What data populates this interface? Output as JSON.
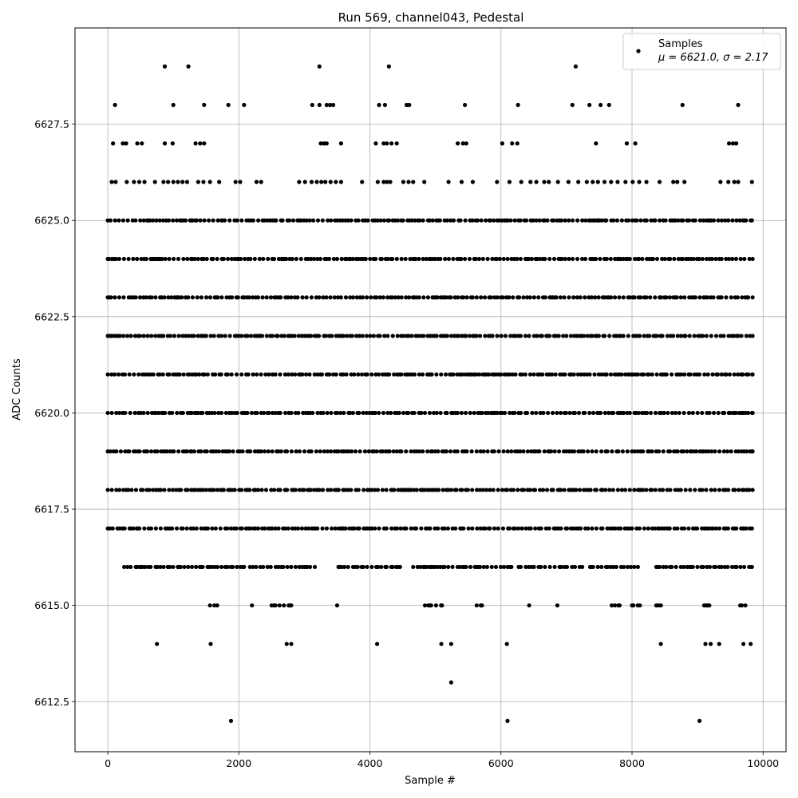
{
  "chart_data": {
    "type": "scatter",
    "title": "Run 569, channel043, Pedestal",
    "xlabel": "Sample #",
    "ylabel": "ADC Counts",
    "xlim": [
      -500,
      10350
    ],
    "ylim": [
      6611.2,
      6630.0
    ],
    "xticks": [
      0,
      2000,
      4000,
      6000,
      8000,
      10000
    ],
    "xtick_labels": [
      "0",
      "2000",
      "4000",
      "6000",
      "8000",
      "10000"
    ],
    "yticks": [
      6612.5,
      6615.0,
      6617.5,
      6620.0,
      6622.5,
      6625.0,
      6627.5
    ],
    "ytick_labels": [
      "6612.5",
      "6615.0",
      "6617.5",
      "6620.0",
      "6622.5",
      "6625.0",
      "6627.5"
    ],
    "grid": true,
    "legend_position": "top-right",
    "series": [
      {
        "name": "Samples",
        "legend_stats": "μ = 6621.0, σ = 2.17",
        "color": "#000000",
        "points": [
          [
            870,
            6629
          ],
          [
            1230,
            6629
          ],
          [
            3230,
            6629
          ],
          [
            4290,
            6629
          ],
          [
            7140,
            6629
          ],
          [
            110,
            6628
          ],
          [
            1000,
            6628
          ],
          [
            1470,
            6628
          ],
          [
            1840,
            6628
          ],
          [
            2080,
            6628
          ],
          [
            3120,
            6628
          ],
          [
            3230,
            6628
          ],
          [
            3340,
            6628
          ],
          [
            3390,
            6628
          ],
          [
            3440,
            6628
          ],
          [
            4140,
            6628
          ],
          [
            4230,
            6628
          ],
          [
            4560,
            6628
          ],
          [
            4600,
            6628
          ],
          [
            5450,
            6628
          ],
          [
            6260,
            6628
          ],
          [
            7090,
            6628
          ],
          [
            7350,
            6628
          ],
          [
            7520,
            6628
          ],
          [
            7650,
            6628
          ],
          [
            8770,
            6628
          ],
          [
            9620,
            6628
          ],
          [
            80,
            6627
          ],
          [
            230,
            6627
          ],
          [
            280,
            6627
          ],
          [
            450,
            6627
          ],
          [
            520,
            6627
          ],
          [
            870,
            6627
          ],
          [
            990,
            6627
          ],
          [
            1340,
            6627
          ],
          [
            1410,
            6627
          ],
          [
            1470,
            6627
          ],
          [
            3250,
            6627
          ],
          [
            3300,
            6627
          ],
          [
            3340,
            6627
          ],
          [
            3560,
            6627
          ],
          [
            4090,
            6627
          ],
          [
            4210,
            6627
          ],
          [
            4260,
            6627
          ],
          [
            4330,
            6627
          ],
          [
            4410,
            6627
          ],
          [
            5340,
            6627
          ],
          [
            5420,
            6627
          ],
          [
            5470,
            6627
          ],
          [
            6020,
            6627
          ],
          [
            6170,
            6627
          ],
          [
            6250,
            6627
          ],
          [
            7450,
            6627
          ],
          [
            7920,
            6627
          ],
          [
            8050,
            6627
          ],
          [
            9480,
            6627
          ],
          [
            9540,
            6627
          ],
          [
            9590,
            6627
          ],
          [
            60,
            6626
          ],
          [
            120,
            6626
          ],
          [
            290,
            6626
          ],
          [
            400,
            6626
          ],
          [
            480,
            6626
          ],
          [
            560,
            6626
          ],
          [
            720,
            6626
          ],
          [
            850,
            6626
          ],
          [
            920,
            6626
          ],
          [
            1000,
            6626
          ],
          [
            1070,
            6626
          ],
          [
            1140,
            6626
          ],
          [
            1210,
            6626
          ],
          [
            1380,
            6626
          ],
          [
            1460,
            6626
          ],
          [
            1560,
            6626
          ],
          [
            1700,
            6626
          ],
          [
            1950,
            6626
          ],
          [
            2020,
            6626
          ],
          [
            2270,
            6626
          ],
          [
            2340,
            6626
          ],
          [
            2920,
            6626
          ],
          [
            3010,
            6626
          ],
          [
            3110,
            6626
          ],
          [
            3190,
            6626
          ],
          [
            3260,
            6626
          ],
          [
            3320,
            6626
          ],
          [
            3400,
            6626
          ],
          [
            3480,
            6626
          ],
          [
            3560,
            6626
          ],
          [
            3880,
            6626
          ],
          [
            4120,
            6626
          ],
          [
            4210,
            6626
          ],
          [
            4260,
            6626
          ],
          [
            4310,
            6626
          ],
          [
            4510,
            6626
          ],
          [
            4590,
            6626
          ],
          [
            4660,
            6626
          ],
          [
            4830,
            6626
          ],
          [
            5200,
            6626
          ],
          [
            5400,
            6626
          ],
          [
            5570,
            6626
          ],
          [
            5940,
            6626
          ],
          [
            6130,
            6626
          ],
          [
            6310,
            6626
          ],
          [
            6450,
            6626
          ],
          [
            6540,
            6626
          ],
          [
            6660,
            6626
          ],
          [
            6730,
            6626
          ],
          [
            6870,
            6626
          ],
          [
            7030,
            6626
          ],
          [
            7180,
            6626
          ],
          [
            7310,
            6626
          ],
          [
            7400,
            6626
          ],
          [
            7480,
            6626
          ],
          [
            7580,
            6626
          ],
          [
            7680,
            6626
          ],
          [
            7780,
            6626
          ],
          [
            7900,
            6626
          ],
          [
            8010,
            6626
          ],
          [
            8110,
            6626
          ],
          [
            8220,
            6626
          ],
          [
            8420,
            6626
          ],
          [
            8630,
            6626
          ],
          [
            8690,
            6626
          ],
          [
            8800,
            6626
          ],
          [
            9350,
            6626
          ],
          [
            9470,
            6626
          ],
          [
            9560,
            6626
          ],
          [
            9620,
            6626
          ],
          [
            9830,
            6626
          ],
          [
            750,
            6614
          ],
          [
            1570,
            6614
          ],
          [
            2730,
            6614
          ],
          [
            2800,
            6614
          ],
          [
            4110,
            6614
          ],
          [
            5090,
            6614
          ],
          [
            5240,
            6614
          ],
          [
            6090,
            6614
          ],
          [
            8440,
            6614
          ],
          [
            9120,
            6614
          ],
          [
            9200,
            6614
          ],
          [
            9330,
            6614
          ],
          [
            9700,
            6614
          ],
          [
            9810,
            6614
          ],
          [
            5240,
            6613
          ],
          [
            1880,
            6612
          ],
          [
            6100,
            6612
          ],
          [
            9030,
            6612
          ]
        ],
        "bands": [
          {
            "y": 6625,
            "segments": [
              [
                0,
                9830
              ]
            ]
          },
          {
            "y": 6624,
            "segments": [
              [
                0,
                9840
              ]
            ]
          },
          {
            "y": 6623,
            "segments": [
              [
                0,
                9840
              ]
            ]
          },
          {
            "y": 6622,
            "segments": [
              [
                0,
                9840
              ]
            ]
          },
          {
            "y": 6621,
            "segments": [
              [
                0,
                9840
              ]
            ]
          },
          {
            "y": 6620,
            "segments": [
              [
                0,
                9840
              ]
            ]
          },
          {
            "y": 6619,
            "segments": [
              [
                0,
                9840
              ]
            ]
          },
          {
            "y": 6618,
            "segments": [
              [
                0,
                9840
              ]
            ]
          },
          {
            "y": 6617,
            "segments": [
              [
                0,
                9830
              ]
            ]
          },
          {
            "y": 6616,
            "segments": [
              [
                250,
                2080
              ],
              [
                2170,
                3160
              ],
              [
                3520,
                4460
              ],
              [
                4660,
                6160
              ],
              [
                6270,
                7240
              ],
              [
                7360,
                8090
              ],
              [
                8370,
                9830
              ]
            ]
          },
          {
            "y": 6615,
            "segments": [
              [
                1560,
                1670
              ],
              [
                2200,
                2200
              ],
              [
                2500,
                2800
              ],
              [
                3500,
                3500
              ],
              [
                4840,
                5100
              ],
              [
                5630,
                5710
              ],
              [
                6430,
                6430
              ],
              [
                6860,
                6860
              ],
              [
                7690,
                7810
              ],
              [
                8000,
                8120
              ],
              [
                8370,
                8440
              ],
              [
                9100,
                9180
              ],
              [
                9650,
                9730
              ]
            ]
          }
        ]
      }
    ]
  }
}
